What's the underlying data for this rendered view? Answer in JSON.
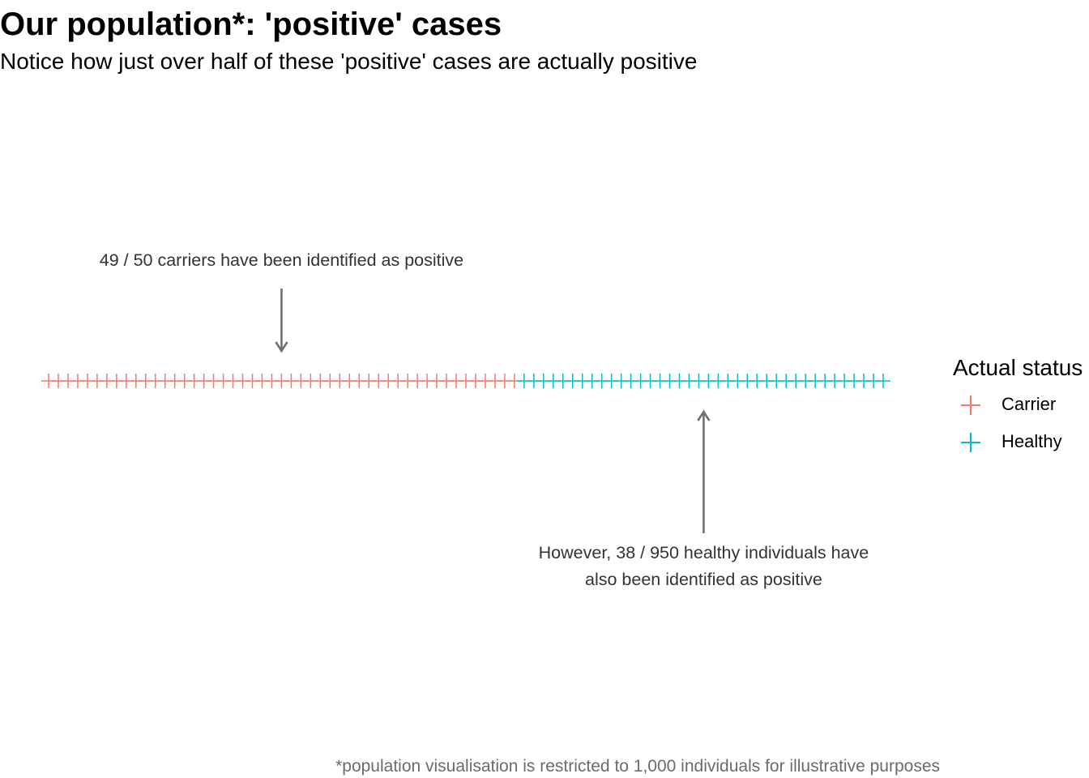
{
  "header": {
    "title": "Our population*: 'positive' cases",
    "subtitle": "Notice how just over half of these 'positive' cases are actually positive"
  },
  "caption": "*population visualisation is restricted to 1,000 individuals for illustrative purposes",
  "colors": {
    "carrier": "#F8766D",
    "healthy": "#00BFC4",
    "annotation": "#707070"
  },
  "chart_data": {
    "type": "scatter",
    "shape": "plus",
    "xlim": [
      1,
      87
    ],
    "grid": false,
    "legend_position": "right",
    "series": [
      {
        "name": "Carrier",
        "count": 49,
        "x_start": 1
      },
      {
        "name": "Healthy",
        "count": 38,
        "x_start": 50
      }
    ],
    "annotations": [
      {
        "text": "49 / 50 carriers have been identified as positive",
        "arrow": "down",
        "target_series": "Carrier"
      },
      {
        "text_lines": [
          "However, 38 / 950 healthy individuals have",
          "also been identified as positive"
        ],
        "arrow": "up",
        "target_series": "Healthy"
      }
    ]
  },
  "legend": {
    "title": "Actual status",
    "items": [
      {
        "label": "Carrier",
        "color": "#F8766D"
      },
      {
        "label": "Healthy",
        "color": "#00BFC4"
      }
    ]
  }
}
